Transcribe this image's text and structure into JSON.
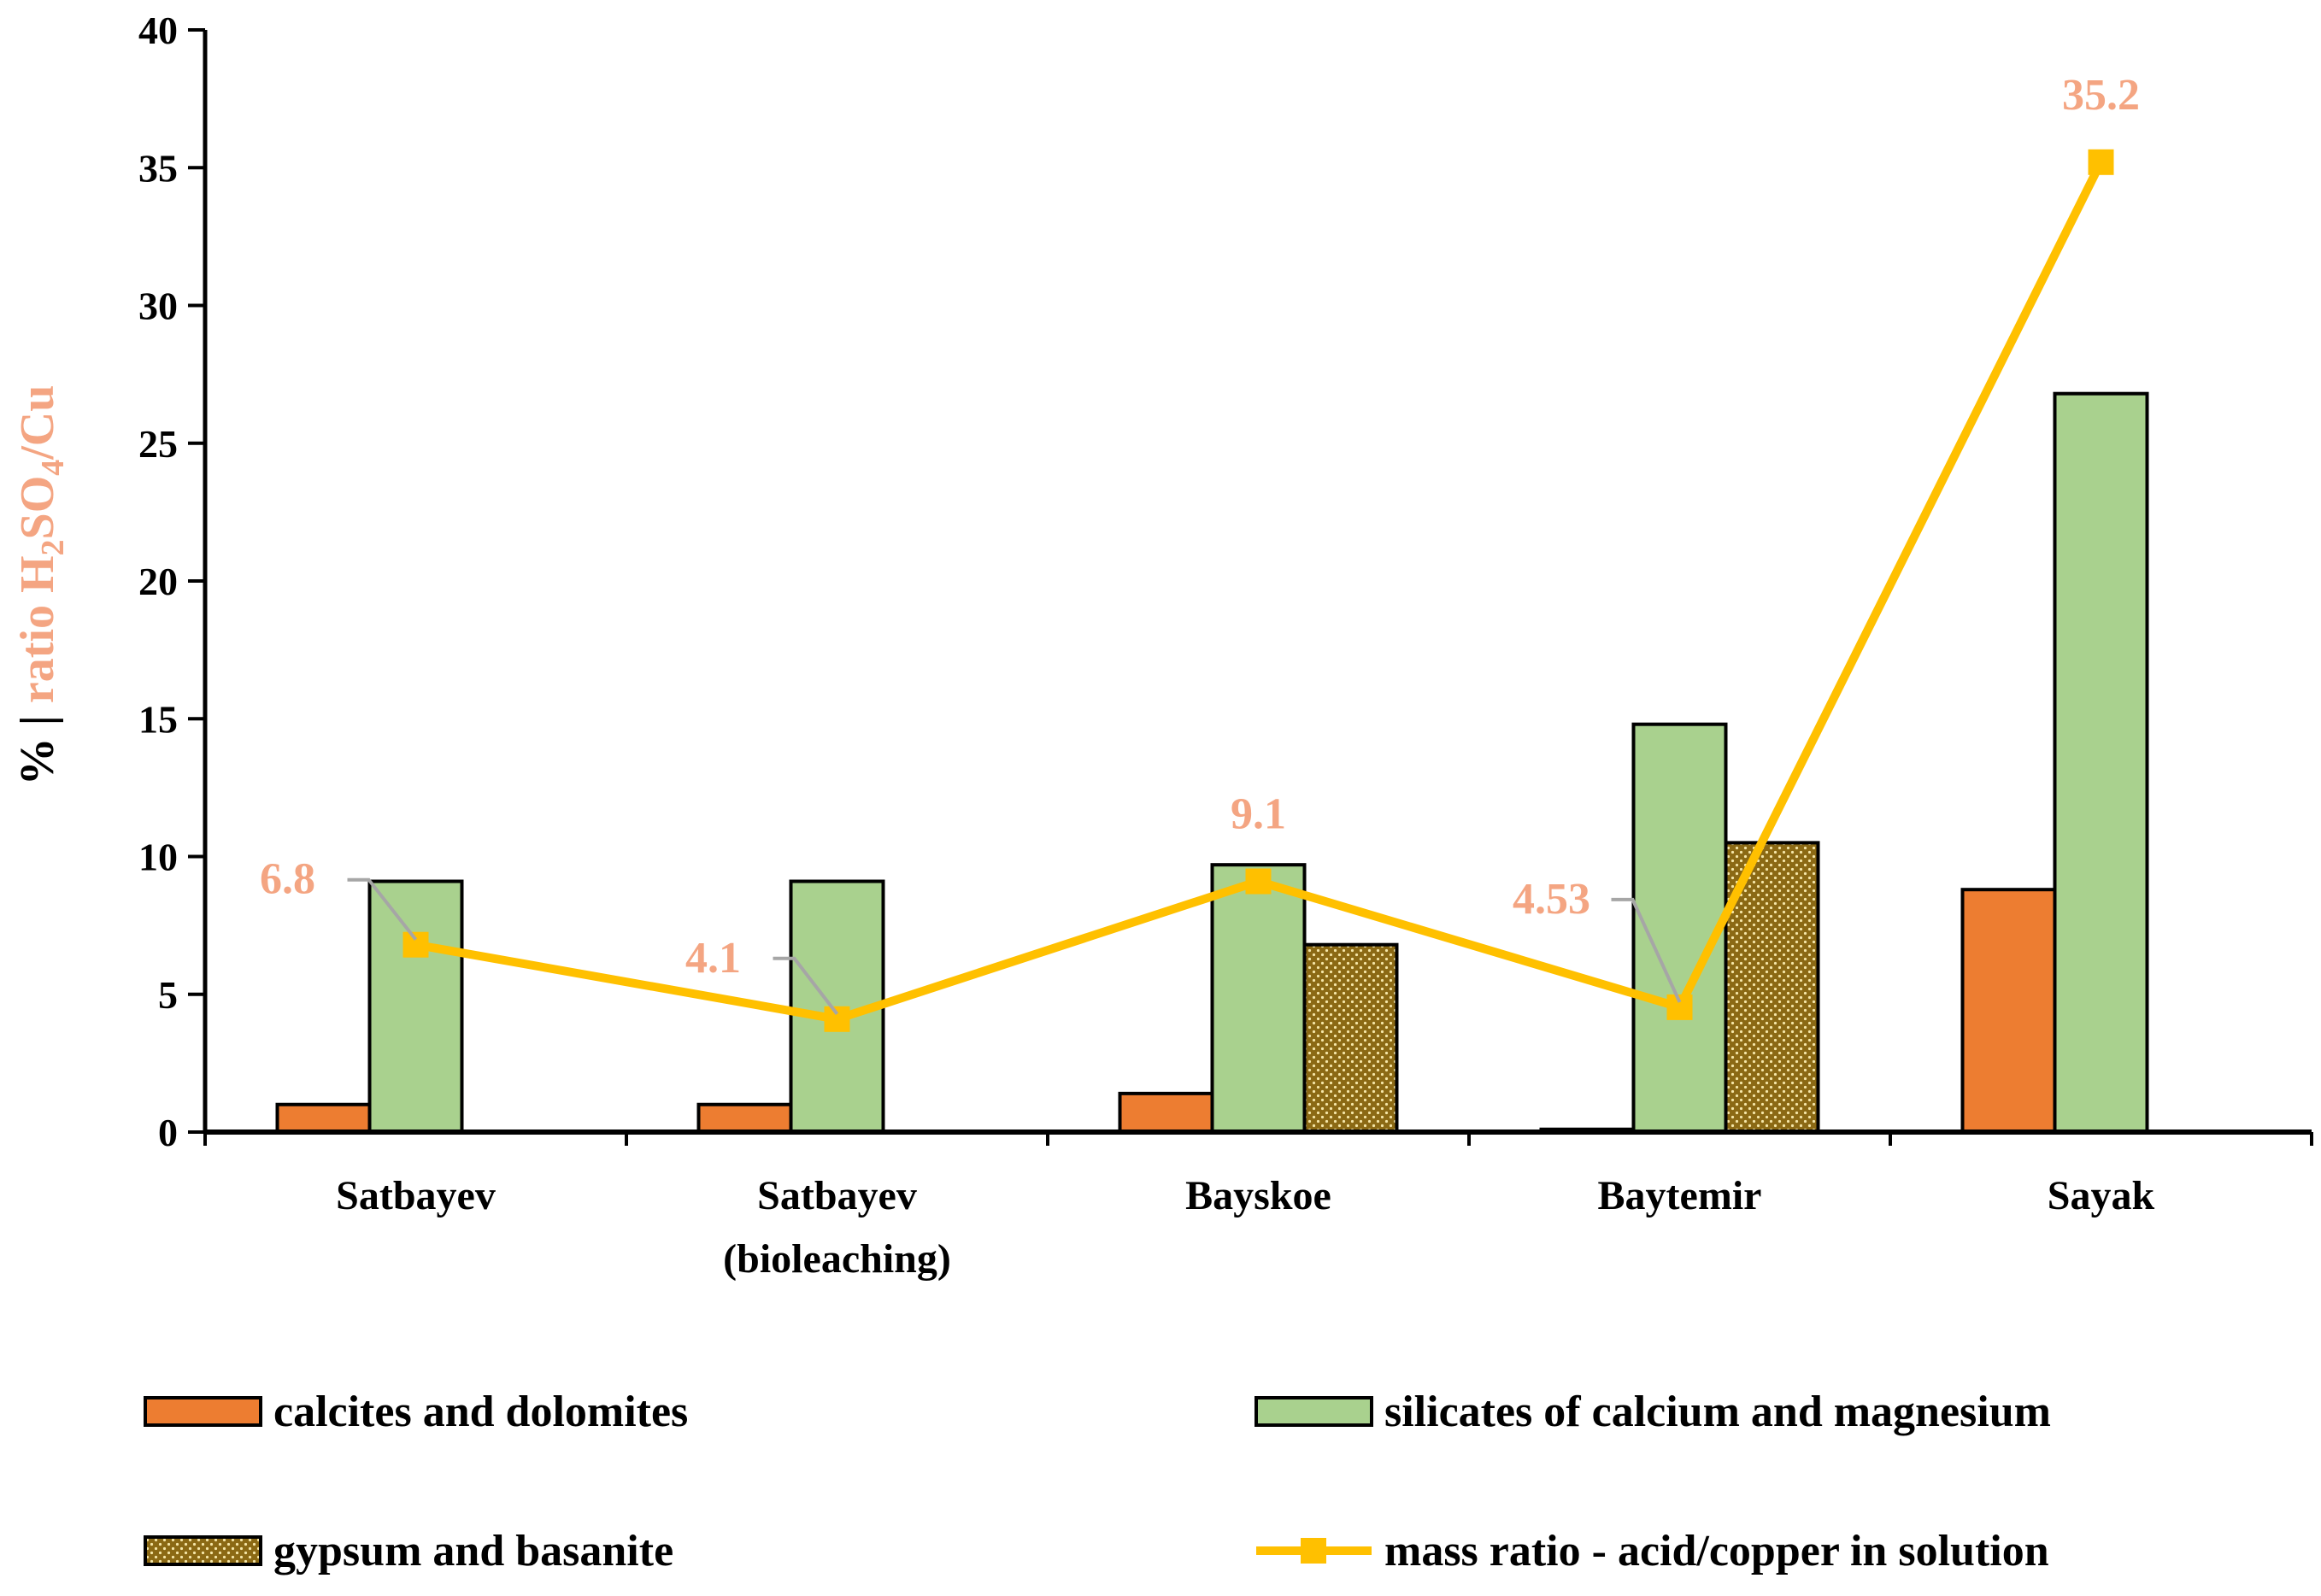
{
  "chart_data": {
    "type": "bar",
    "categories": [
      [
        "Satbayev"
      ],
      [
        "Satbayev",
        "(bioleaching)"
      ],
      [
        "Bayskoe"
      ],
      [
        "Baytemir"
      ],
      [
        "Sayak"
      ]
    ],
    "ylim": [
      0,
      40
    ],
    "yticks": [
      0,
      5,
      10,
      15,
      20,
      25,
      30,
      35,
      40
    ],
    "ylabel": {
      "prefix": "% | ",
      "ratio": "ratio H",
      "sub2": "2",
      "so": "SO",
      "sub4": "4",
      "cu": "/Cu"
    },
    "xlabel": "",
    "series": [
      {
        "name": "calcites and dolomites",
        "kind": "bar",
        "color": "#ED7D31",
        "values": [
          1.0,
          1.0,
          1.4,
          0.1,
          8.8
        ]
      },
      {
        "name": "silicates of calcium and magnesium",
        "kind": "bar",
        "color": "#A9D18E",
        "values": [
          9.1,
          9.1,
          9.7,
          14.8,
          26.8
        ]
      },
      {
        "name": "gypsum and basanite",
        "kind": "bar",
        "color": "#8B6914",
        "pattern": "dotted",
        "values": [
          null,
          null,
          6.8,
          10.5,
          null
        ]
      },
      {
        "name": "mass ratio - acid/copper in solution",
        "kind": "line",
        "color": "#FFC000",
        "values": [
          6.8,
          4.1,
          9.1,
          4.53,
          35.2
        ],
        "labels": [
          "6.8",
          "4.1",
          "9.1",
          "4.53",
          "35.2"
        ],
        "label_color": "#F4A582"
      }
    ],
    "legend_position": "bottom"
  }
}
